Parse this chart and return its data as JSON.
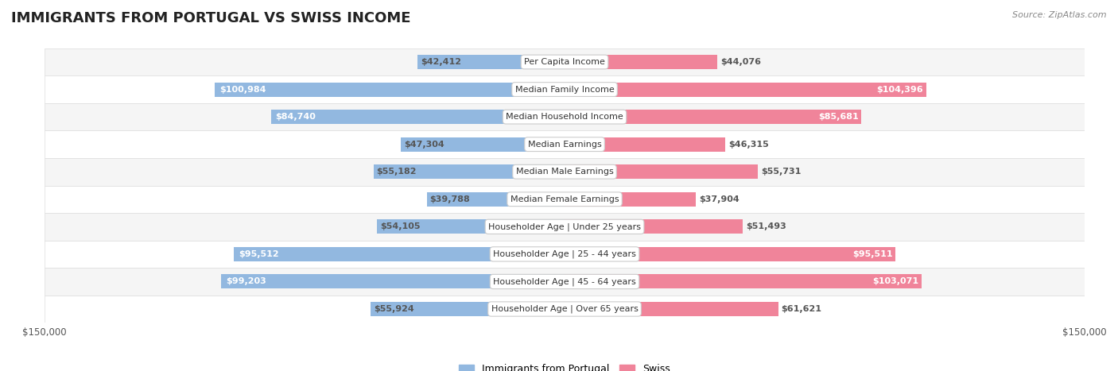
{
  "title": "IMMIGRANTS FROM PORTUGAL VS SWISS INCOME",
  "source": "Source: ZipAtlas.com",
  "categories": [
    "Per Capita Income",
    "Median Family Income",
    "Median Household Income",
    "Median Earnings",
    "Median Male Earnings",
    "Median Female Earnings",
    "Householder Age | Under 25 years",
    "Householder Age | 25 - 44 years",
    "Householder Age | 45 - 64 years",
    "Householder Age | Over 65 years"
  ],
  "portugal_values": [
    42412,
    100984,
    84740,
    47304,
    55182,
    39788,
    54105,
    95512,
    99203,
    55924
  ],
  "swiss_values": [
    44076,
    104396,
    85681,
    46315,
    55731,
    37904,
    51493,
    95511,
    103071,
    61621
  ],
  "portugal_labels": [
    "$42,412",
    "$100,984",
    "$84,740",
    "$47,304",
    "$55,182",
    "$39,788",
    "$54,105",
    "$95,512",
    "$99,203",
    "$55,924"
  ],
  "swiss_labels": [
    "$44,076",
    "$104,396",
    "$85,681",
    "$46,315",
    "$55,731",
    "$37,904",
    "$51,493",
    "$95,511",
    "$103,071",
    "$61,621"
  ],
  "max_value": 150000,
  "portugal_color": "#92b8e0",
  "swiss_color": "#f0849a",
  "portugal_label_color_inside": "#ffffff",
  "portugal_label_color_outside": "#555555",
  "swiss_label_color_inside": "#ffffff",
  "swiss_label_color_outside": "#555555",
  "inside_threshold": 70000,
  "background_color": "#ffffff",
  "row_bg_even": "#f5f5f5",
  "row_bg_odd": "#ffffff",
  "row_border_color": "#dddddd",
  "label_fontsize": 8.0,
  "category_fontsize": 8.0,
  "title_fontsize": 13,
  "legend_fontsize": 9,
  "axis_label_fontsize": 8.5
}
